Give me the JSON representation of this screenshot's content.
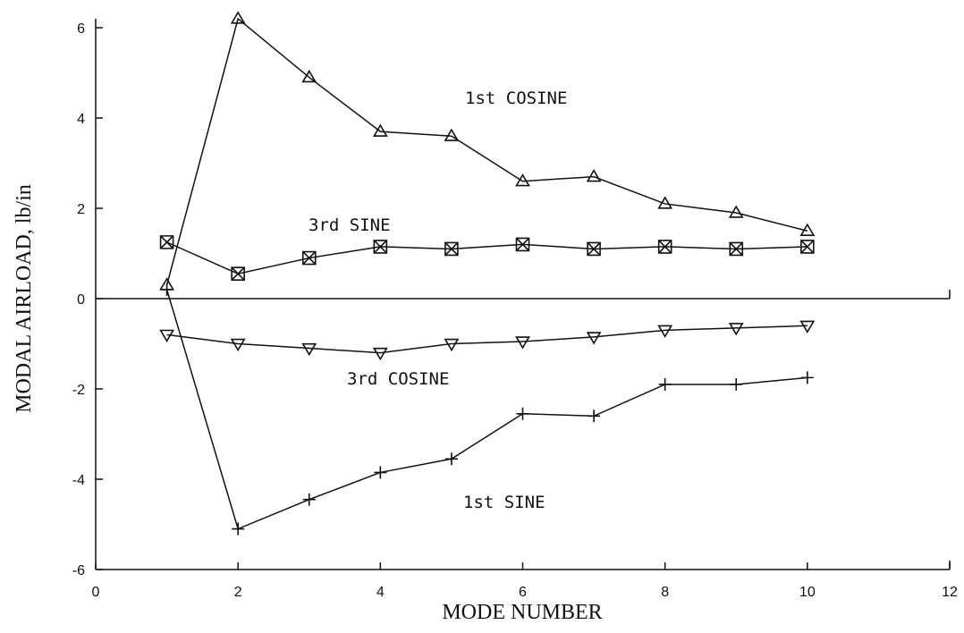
{
  "chart_data": {
    "type": "line",
    "x_label": "MODE NUMBER",
    "y_label": "MODAL AIRLOAD, lb/in",
    "xlim": [
      0,
      12
    ],
    "xticks": [
      0,
      2,
      4,
      6,
      8,
      10,
      12
    ],
    "ylim": [
      -6,
      6
    ],
    "yticks": [
      -6,
      -4,
      -2,
      0,
      2,
      4,
      6
    ],
    "x": [
      1,
      2,
      3,
      4,
      5,
      6,
      7,
      8,
      9,
      10
    ],
    "series": [
      {
        "name": "1st COSINE",
        "color": "#111111",
        "marker": "triangle-up",
        "values": [
          0.3,
          6.2,
          4.9,
          3.7,
          3.6,
          2.6,
          2.7,
          2.1,
          1.9,
          1.5
        ]
      },
      {
        "name": "3rd SINE",
        "color": "#111111",
        "marker": "square-x",
        "values": [
          1.25,
          0.55,
          0.9,
          1.15,
          1.1,
          1.2,
          1.1,
          1.15,
          1.1,
          1.15
        ]
      },
      {
        "name": "3rd COSINE",
        "color": "#111111",
        "marker": "triangle-down",
        "values": [
          -0.8,
          -1.0,
          -1.1,
          -1.2,
          -1.0,
          -0.95,
          -0.85,
          -0.7,
          -0.65,
          -0.6
        ]
      },
      {
        "name": "1st SINE",
        "color": "#111111",
        "marker": "plus",
        "values": [
          0.2,
          -5.1,
          -4.45,
          -3.85,
          -3.55,
          -2.55,
          -2.6,
          -1.9,
          -1.9,
          -1.75
        ]
      }
    ]
  }
}
